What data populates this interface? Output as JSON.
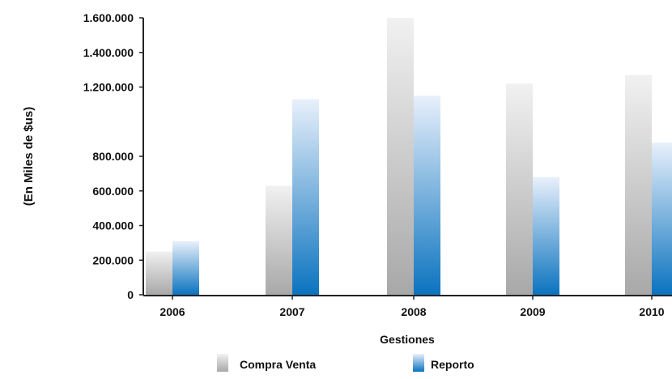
{
  "chart_data": {
    "type": "bar",
    "title": "",
    "xlabel": "Gestiones",
    "ylabel": "(En Miles de $us)",
    "categories": [
      "2006",
      "2007",
      "2008",
      "2009",
      "2010"
    ],
    "series": [
      {
        "name": "Compra Venta",
        "values": [
          250000,
          630000,
          1600000,
          1220000,
          1270000
        ]
      },
      {
        "name": "Reporto",
        "values": [
          310000,
          1130000,
          1150000,
          680000,
          880000
        ]
      }
    ],
    "ylim": [
      0,
      1600000
    ],
    "yticks": [
      {
        "value": 0,
        "label": "0"
      },
      {
        "value": 200000,
        "label": "200.000"
      },
      {
        "value": 400000,
        "label": "400.000"
      },
      {
        "value": 600000,
        "label": "600.000"
      },
      {
        "value": 800000,
        "label": "800.000"
      },
      {
        "value": 1200000,
        "label": "1.200.000"
      },
      {
        "value": 1400000,
        "label": "1.400.000"
      },
      {
        "value": 1600000,
        "label": "1.600.000"
      }
    ],
    "grid": false,
    "legend_position": "bottom",
    "colors": {
      "compra_venta_top": "#f1f1f1",
      "compra_venta_bottom": "#a8a8a8",
      "reporto_top": "#e8f0fb",
      "reporto_bottom": "#0b73bf"
    }
  }
}
